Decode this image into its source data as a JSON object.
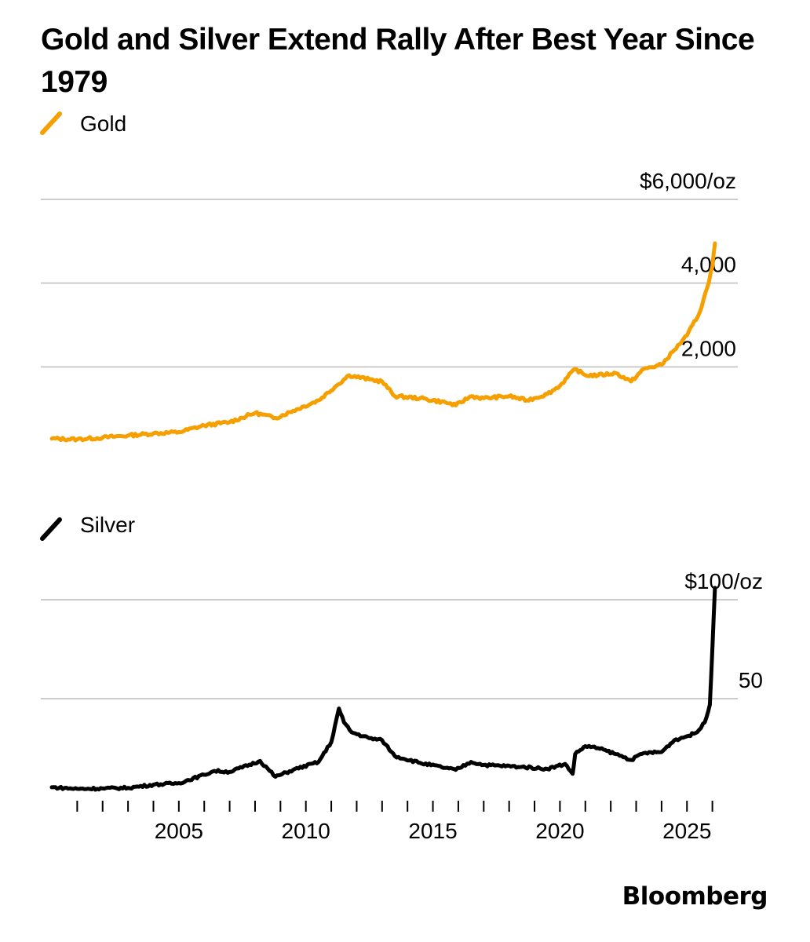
{
  "title": "Gold and Silver Extend Rally After Best Year Since 1979",
  "source": "Bloomberg",
  "colors": {
    "gold": "#F5A000",
    "silver": "#000000",
    "grid": "#cccccc"
  },
  "chart_data": [
    {
      "type": "line",
      "name": "Gold",
      "legend": "Gold",
      "color": "#F5A000",
      "units": "$/oz",
      "ylim": [
        0,
        6000
      ],
      "yticks": [
        {
          "value": 6000,
          "label": "$6,000/oz"
        },
        {
          "value": 4000,
          "label": "4,000"
        },
        {
          "value": 2000,
          "label": "2,000"
        }
      ],
      "x": [
        2000.0,
        2001.0,
        2002.0,
        2003.0,
        2004.0,
        2005.0,
        2006.0,
        2007.0,
        2008.0,
        2008.8,
        2009.5,
        2010.5,
        2011.2,
        2011.7,
        2012.5,
        2013.0,
        2013.5,
        2014.5,
        2015.5,
        2015.9,
        2016.5,
        2017.0,
        2018.0,
        2018.7,
        2019.5,
        2020.0,
        2020.6,
        2021.0,
        2021.5,
        2022.2,
        2022.8,
        2023.3,
        2024.0,
        2024.5,
        2025.0,
        2025.5,
        2025.8,
        2026.0,
        2026.1
      ],
      "values": [
        285,
        270,
        310,
        360,
        410,
        440,
        600,
        680,
        900,
        780,
        950,
        1200,
        1550,
        1800,
        1700,
        1650,
        1300,
        1250,
        1150,
        1080,
        1300,
        1250,
        1300,
        1200,
        1350,
        1550,
        1950,
        1800,
        1800,
        1850,
        1650,
        1950,
        2050,
        2400,
        2750,
        3300,
        3900,
        4400,
        4950
      ]
    },
    {
      "type": "line",
      "name": "Silver",
      "legend": "Silver",
      "color": "#000000",
      "units": "$/oz",
      "ylim": [
        0,
        100
      ],
      "yticks": [
        {
          "value": 100,
          "label": "$100/oz"
        },
        {
          "value": 50,
          "label": "50"
        }
      ],
      "x": [
        2000.0,
        2001.0,
        2002.0,
        2003.0,
        2004.0,
        2005.0,
        2006.0,
        2006.4,
        2007.0,
        2008.2,
        2008.8,
        2009.5,
        2010.5,
        2011.0,
        2011.3,
        2011.5,
        2011.8,
        2012.5,
        2013.0,
        2013.5,
        2014.5,
        2015.5,
        2015.9,
        2016.5,
        2017.0,
        2018.5,
        2019.5,
        2020.2,
        2020.5,
        2020.6,
        2021.0,
        2021.5,
        2022.2,
        2022.8,
        2023.3,
        2024.0,
        2024.5,
        2025.0,
        2025.4,
        2025.7,
        2025.9,
        2026.0,
        2026.1
      ],
      "values": [
        5.2,
        4.4,
        4.6,
        4.9,
        6.5,
        7.3,
        11.5,
        13.5,
        13.0,
        18.5,
        10.5,
        14.0,
        18.0,
        28.0,
        45.0,
        38.0,
        33.0,
        30.0,
        29.0,
        21.0,
        17.5,
        15.0,
        14.0,
        18.0,
        16.5,
        15.5,
        14.5,
        17.0,
        12.0,
        22.0,
        26.0,
        25.0,
        22.0,
        19.0,
        22.5,
        23.0,
        29.0,
        31.0,
        33.0,
        38.0,
        47.0,
        75.0,
        106.0
      ]
    }
  ],
  "x_axis": {
    "range": [
      2000,
      2027
    ],
    "tick_years": [
      2001,
      2002,
      2003,
      2004,
      2005,
      2006,
      2007,
      2008,
      2009,
      2010,
      2011,
      2012,
      2013,
      2014,
      2015,
      2016,
      2017,
      2018,
      2019,
      2020,
      2021,
      2022,
      2023,
      2024,
      2025,
      2026
    ],
    "labels": [
      {
        "year": 2005,
        "label": "2005"
      },
      {
        "year": 2010,
        "label": "2010"
      },
      {
        "year": 2015,
        "label": "2015"
      },
      {
        "year": 2020,
        "label": "2020"
      },
      {
        "year": 2025,
        "label": "2025"
      }
    ]
  }
}
